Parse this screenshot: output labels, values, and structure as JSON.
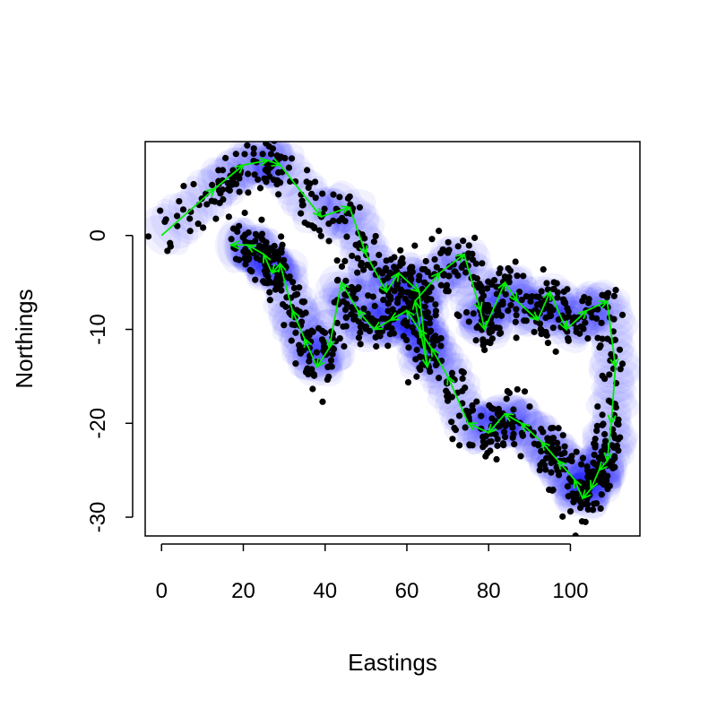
{
  "chart_data": {
    "type": "scatter",
    "title": "",
    "xlabel": "Eastings",
    "ylabel": "Northings",
    "xlim": [
      -4,
      117
    ],
    "ylim": [
      -32,
      10
    ],
    "xticks": [
      0,
      20,
      40,
      60,
      80,
      100
    ],
    "yticks": [
      0,
      -10,
      -20,
      -30
    ],
    "xtick_labels": [
      "0",
      "20",
      "40",
      "60",
      "80",
      "100"
    ],
    "ytick_labels": [
      "0",
      "-10",
      "-20",
      "-30"
    ],
    "grid": false,
    "legend": "none",
    "colors": {
      "observations": "#000000",
      "track_arrows": "#00ee00",
      "uncertainty_ellipses": "#0000ff"
    },
    "track": {
      "x": [
        0,
        13,
        20,
        26,
        29,
        39,
        46,
        50,
        55,
        58,
        63,
        65,
        62,
        68,
        74,
        78,
        79,
        84,
        87,
        92,
        95,
        99,
        104,
        109,
        111,
        110,
        109,
        107,
        105,
        103,
        101,
        97,
        93,
        88,
        84,
        80,
        75,
        70,
        66,
        63,
        60,
        56,
        52,
        48,
        44,
        41,
        38,
        35,
        32,
        29,
        27,
        25,
        21,
        17
      ],
      "y": [
        0,
        5,
        7.5,
        8,
        7.5,
        2,
        3,
        -2,
        -6,
        -4,
        -6,
        -14,
        -7,
        -4,
        -2,
        -8,
        -10,
        -5,
        -7,
        -9,
        -6,
        -10,
        -8,
        -7,
        -14,
        -20,
        -24,
        -25,
        -27,
        -28,
        -26,
        -24,
        -22,
        -20,
        -19,
        -21,
        -20,
        -15,
        -12,
        -10,
        -8,
        -9,
        -10,
        -8,
        -5,
        -12,
        -14,
        -11,
        -8,
        -3,
        -4,
        -2,
        -1,
        -1
      ]
    },
    "observations": {
      "count": 1200,
      "note_scatter_sd": 1.6
    }
  }
}
